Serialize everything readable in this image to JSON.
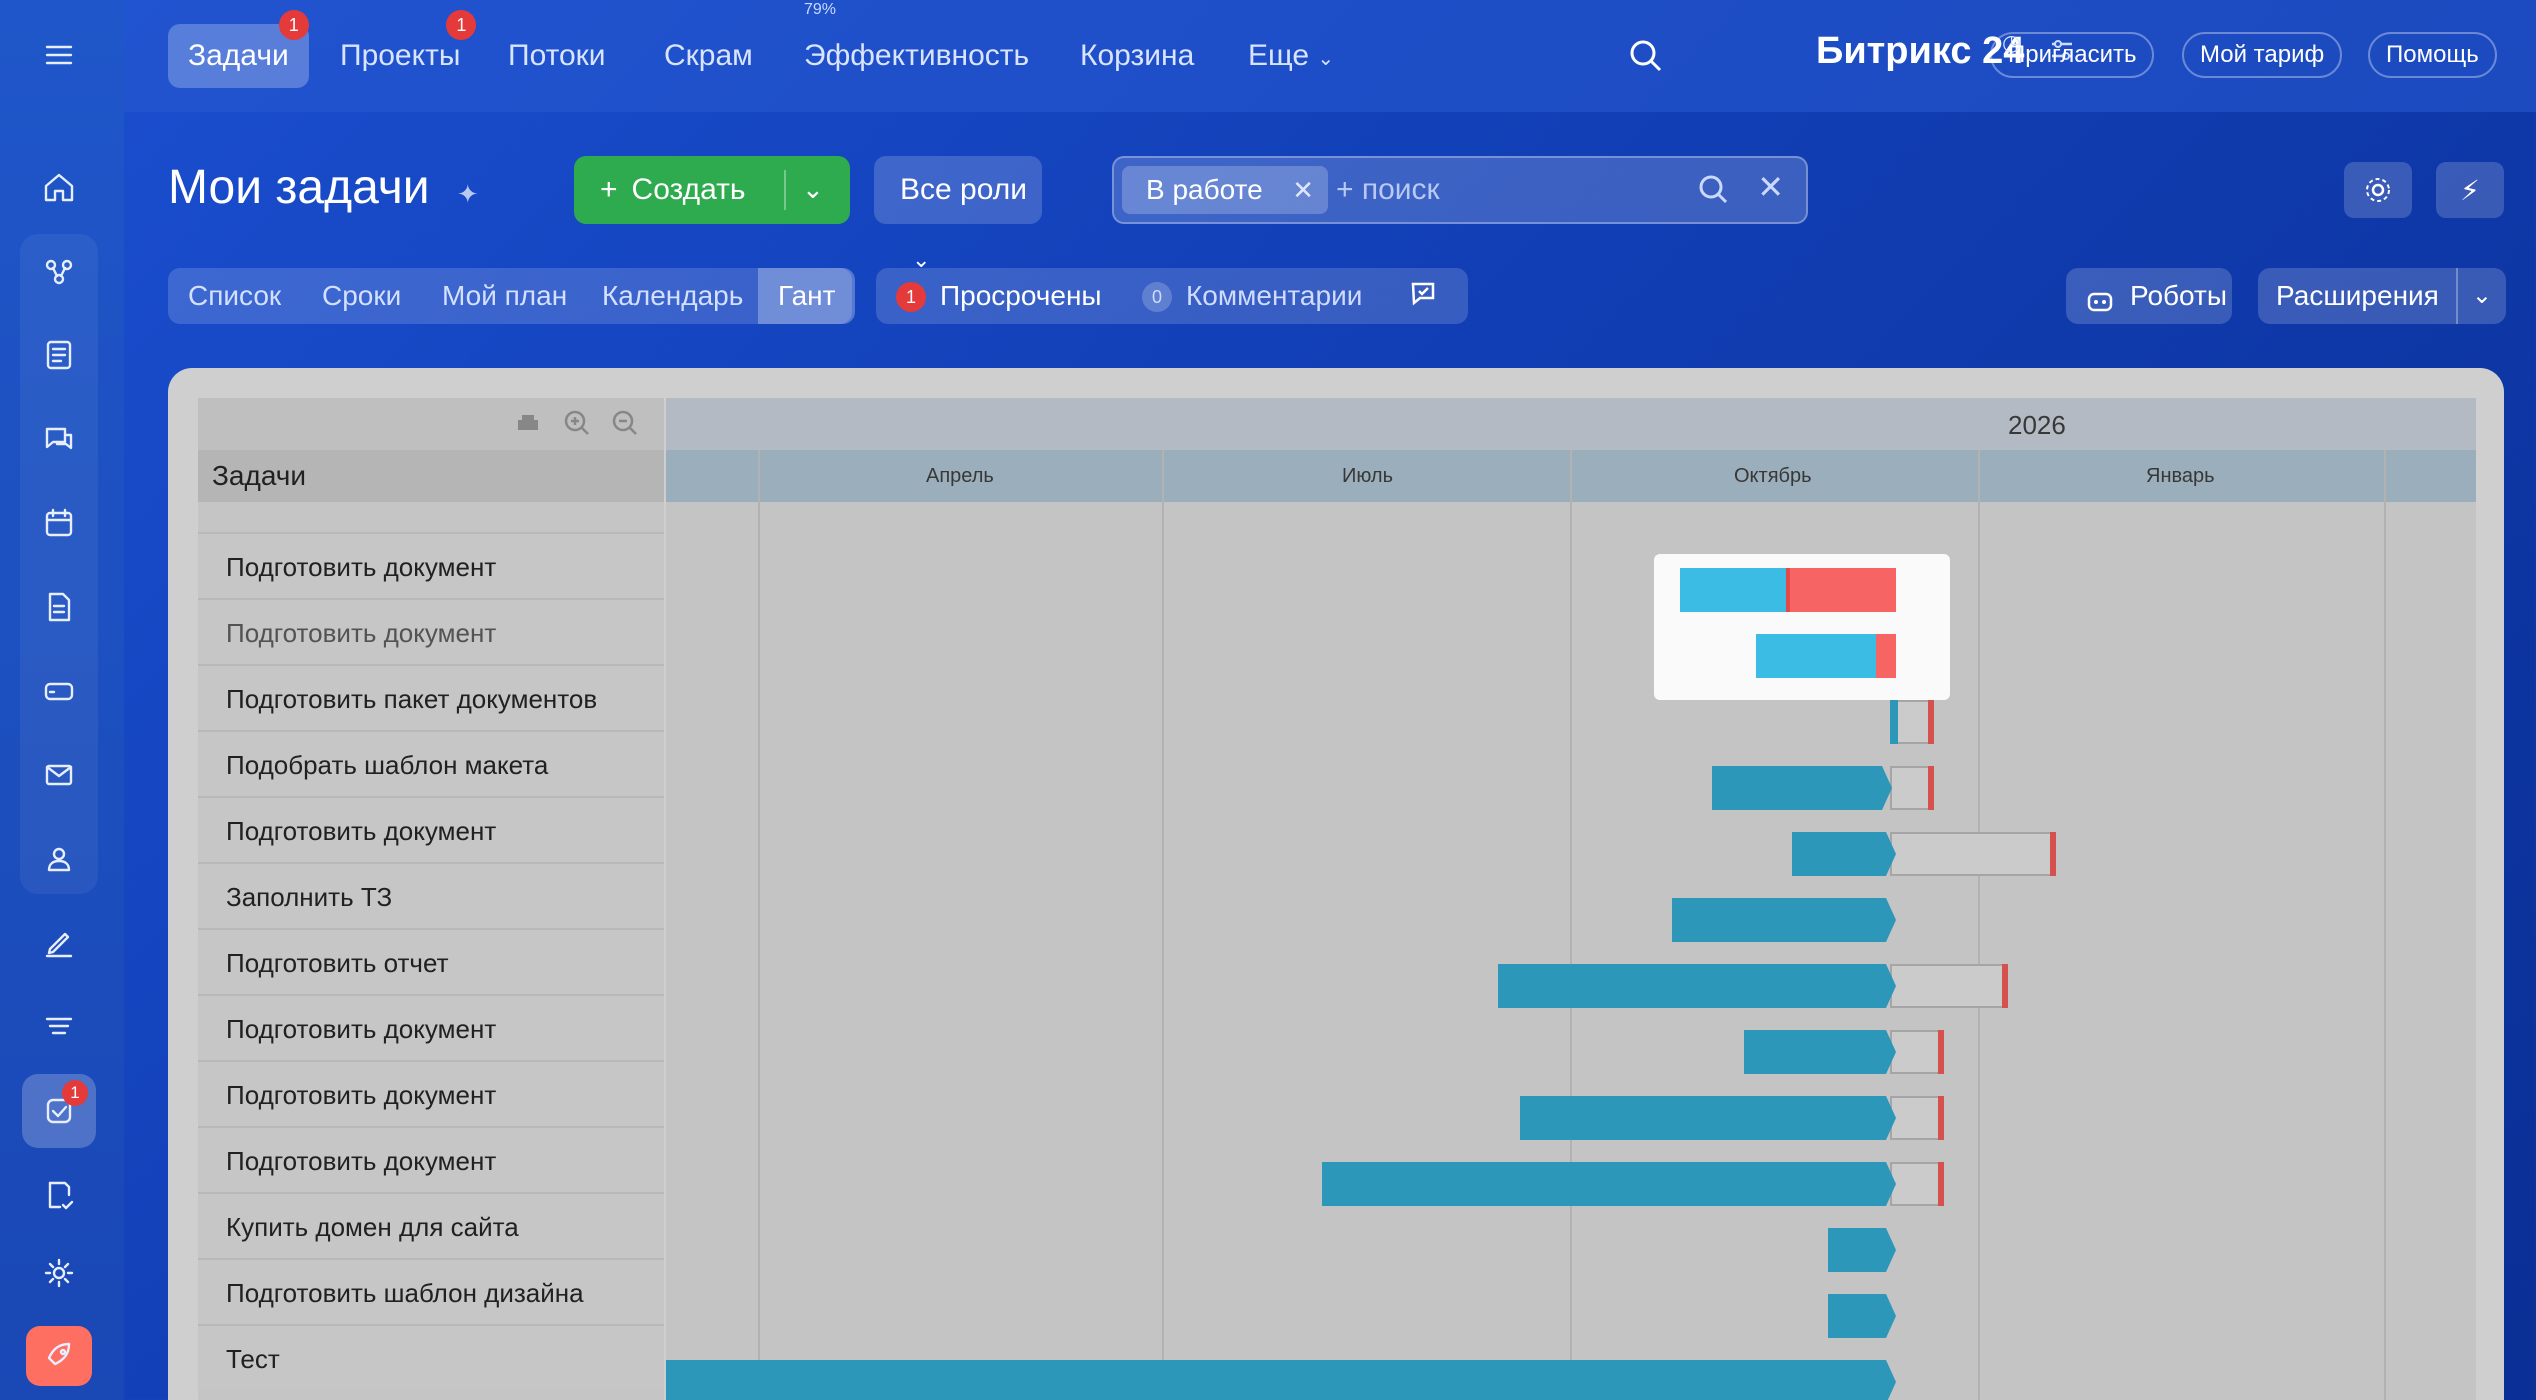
{
  "nav": {
    "tabs": [
      {
        "label": "Задачи",
        "badge": "1",
        "active": true
      },
      {
        "label": "Проекты",
        "badge": "1"
      },
      {
        "label": "Потоки"
      },
      {
        "label": "Скрам"
      },
      {
        "label": "Эффективность",
        "top_note": "79%"
      },
      {
        "label": "Корзина"
      },
      {
        "label": "Еще"
      }
    ],
    "brand": "Битрикс 24",
    "invite_label": "Пригласить",
    "tariff_label": "Мой тариф",
    "help_label": "Помощь"
  },
  "rail": {
    "tasks_badge": "1"
  },
  "header": {
    "title": "Мои задачи",
    "create_label": "Создать",
    "roles_label": "Все роли",
    "filter_chip": "В работе",
    "search_placeholder": "+ поиск"
  },
  "views": {
    "items": [
      "Список",
      "Сроки",
      "Мой план",
      "Календарь",
      "Гант"
    ],
    "active": "Гант"
  },
  "counters": {
    "overdue_count": "1",
    "overdue_label": "Просрочены",
    "comments_count": "0",
    "comments_label": "Комментарии"
  },
  "actions": {
    "robots_label": "Роботы",
    "extensions_label": "Расширения"
  },
  "gantt": {
    "column_title": "Задачи",
    "year": "2026",
    "months": [
      "Апрель",
      "Июль",
      "Октябрь",
      "Январь"
    ],
    "tasks": [
      "Подготовить документ",
      "Подготовить документ",
      "Подготовить пакет документов",
      "Подобрать шаблон макета",
      "Подготовить документ",
      "Заполнить ТЗ",
      "Подготовить отчет",
      "Подготовить документ",
      "Подготовить документ",
      "Подготовить документ",
      "Купить домен для сайта",
      "Подготовить шаблон дизайна",
      "Тест"
    ]
  },
  "colors": {
    "bar": "#2e9bbd",
    "bar_highlight": "#3cc0ea",
    "overdue": "#fb6767",
    "deadline": "#d9534f",
    "create_button": "#2fab4f"
  }
}
